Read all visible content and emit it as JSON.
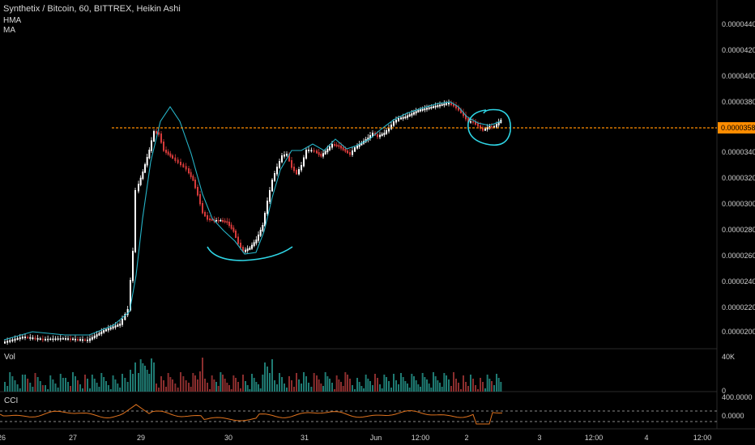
{
  "header": {
    "title": "Synthetix / Bitcoin, 60, BITTREX, Heikin Ashi",
    "indicators": [
      "HMA",
      "MA"
    ]
  },
  "colors": {
    "background": "#000000",
    "bull": "#ffffff",
    "bear": "#d63a3a",
    "hma_line": "#26b4c8",
    "resistance_line": "#ff8c00",
    "price_label_bg": "#ff8c00",
    "vol_bull": "#1f7b73",
    "vol_bear": "#8b2e2e",
    "cci_line": "#e0731e",
    "annotation": "#2fd6e6"
  },
  "price_axis": {
    "ticks": [
      "0.0000440",
      "0.0000420",
      "0.0000400",
      "0.0000380",
      "0.0000358",
      "0.0000340",
      "0.0000320",
      "0.0000300",
      "0.0000280",
      "0.0000260",
      "0.0000240",
      "0.0000220",
      "0.0000200"
    ],
    "current_price_label": "0.0000358"
  },
  "volume_pane": {
    "title": "Vol",
    "ticks": [
      "40K",
      "0"
    ]
  },
  "cci_pane": {
    "title": "CCI",
    "ticks": [
      "400.0000",
      "0.0000"
    ]
  },
  "time_axis": {
    "labels": [
      "26",
      "27",
      "29",
      "30",
      "31",
      "Jun",
      "12:00",
      "2",
      "3",
      "12:00",
      "4",
      "12:00"
    ]
  },
  "chart_data": {
    "type": "candlestick",
    "title": "Synthetix / Bitcoin, 60, BITTREX, Heikin Ashi",
    "ylim": [
      1.9e-05,
      4.5e-05
    ],
    "resistance_level": 3.58e-05,
    "series": [
      {
        "name": "HMA"
      },
      {
        "name": "Vol"
      },
      {
        "name": "CCI"
      }
    ]
  }
}
